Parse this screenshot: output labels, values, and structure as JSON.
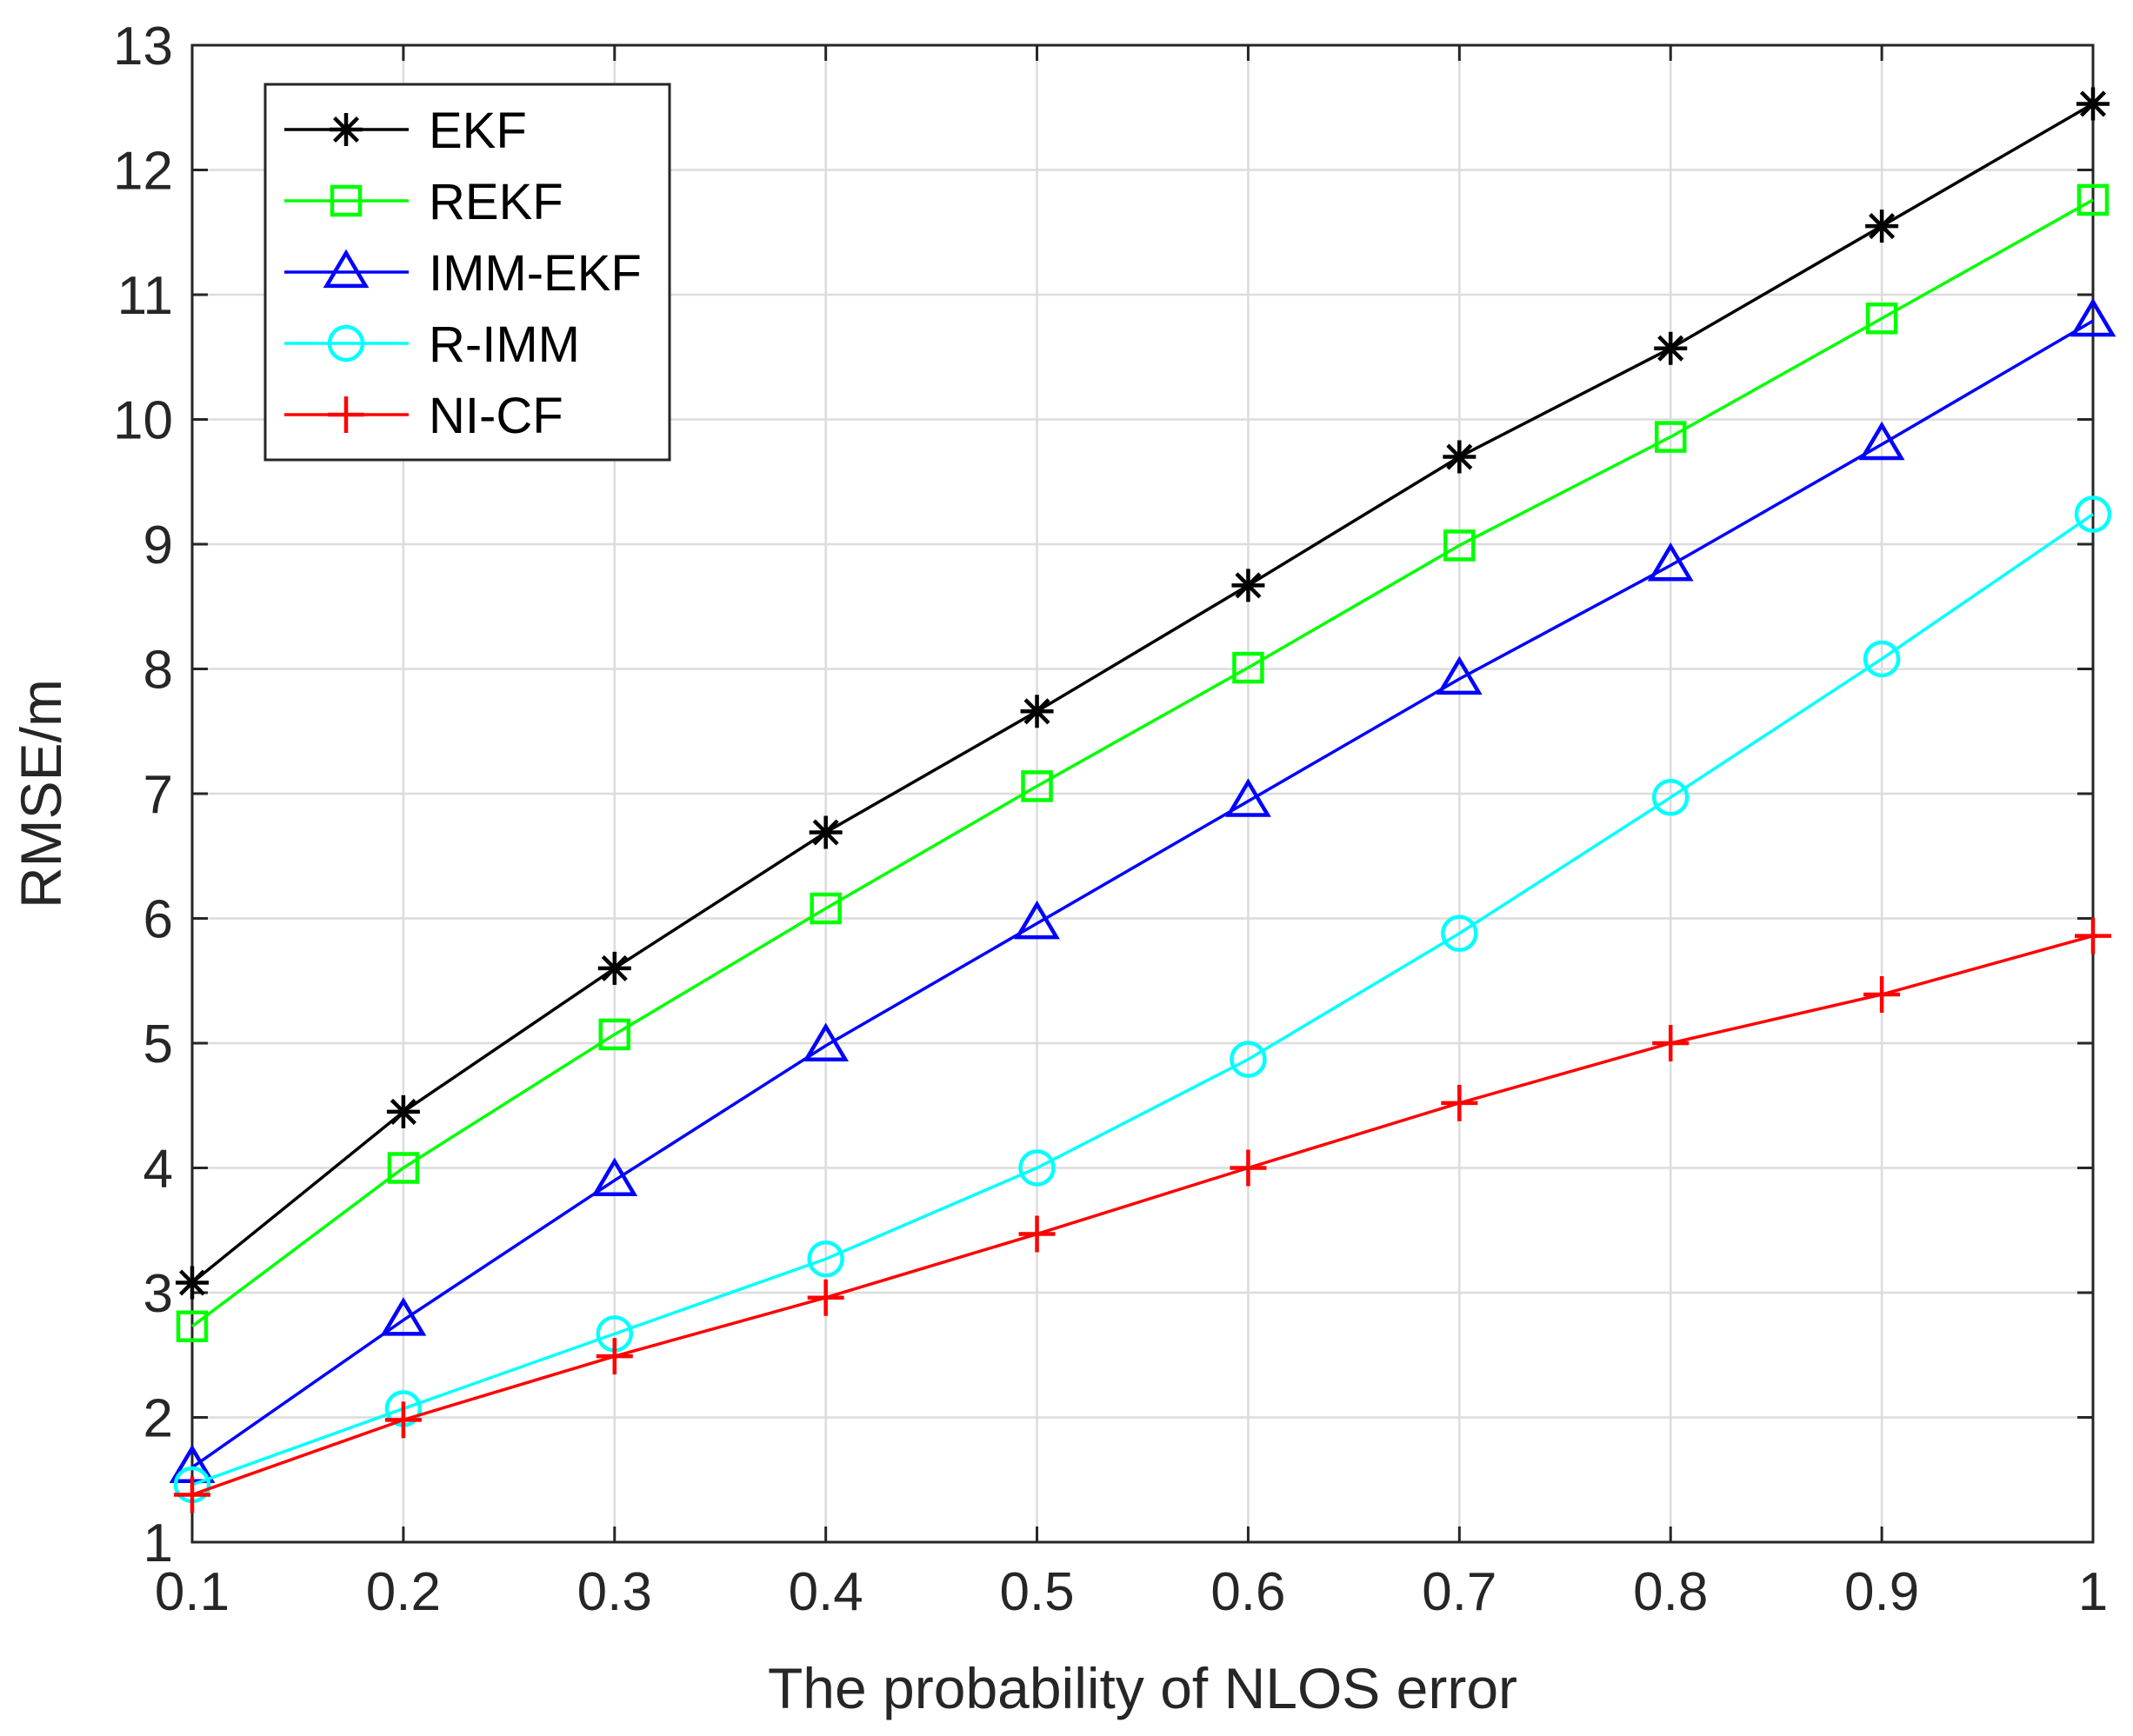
{
  "chart_data": {
    "type": "line",
    "title": "",
    "xlabel": "The probability of NLOS error",
    "ylabel": "RMSE/m",
    "xlim": [
      0.1,
      1
    ],
    "ylim": [
      1,
      13
    ],
    "xticks": [
      0.1,
      0.2,
      0.3,
      0.4,
      0.5,
      0.6,
      0.7,
      0.8,
      0.9,
      1
    ],
    "xtick_labels": [
      "0.1",
      "0.2",
      "0.3",
      "0.4",
      "0.5",
      "0.6",
      "0.7",
      "0.8",
      "0.9",
      "1"
    ],
    "yticks": [
      1,
      2,
      3,
      4,
      5,
      6,
      7,
      8,
      9,
      10,
      11,
      12,
      13
    ],
    "ytick_labels": [
      "1",
      "2",
      "3",
      "4",
      "5",
      "6",
      "7",
      "8",
      "9",
      "10",
      "11",
      "12",
      "13"
    ],
    "grid": true,
    "legend_position": "top-left",
    "x": [
      0.1,
      0.2,
      0.3,
      0.4,
      0.5,
      0.6,
      0.7,
      0.8,
      0.9,
      1.0
    ],
    "series": [
      {
        "name": "EKF",
        "color": "#000000",
        "marker": "asterisk",
        "values": [
          3.08,
          4.45,
          5.6,
          6.69,
          7.66,
          8.67,
          9.7,
          10.57,
          11.55,
          12.53
        ]
      },
      {
        "name": "REKF",
        "color": "#00ff00",
        "marker": "square",
        "values": [
          2.73,
          4.0,
          5.07,
          6.08,
          7.06,
          8.01,
          8.99,
          9.86,
          10.81,
          11.76
        ]
      },
      {
        "name": "IMM-EKF",
        "color": "#0000ff",
        "marker": "triangle",
        "values": [
          1.6,
          2.78,
          3.9,
          4.98,
          5.96,
          6.94,
          7.92,
          8.83,
          9.8,
          10.79
        ]
      },
      {
        "name": "R-IMM",
        "color": "#00ffff",
        "marker": "circle",
        "values": [
          1.46,
          2.07,
          2.67,
          3.27,
          4.0,
          4.87,
          5.88,
          6.97,
          8.08,
          9.24
        ]
      },
      {
        "name": "NI-CF",
        "color": "#ff0000",
        "marker": "plus",
        "values": [
          1.38,
          1.98,
          2.49,
          2.96,
          3.47,
          4.0,
          4.52,
          5.0,
          5.39,
          5.86
        ]
      }
    ]
  }
}
